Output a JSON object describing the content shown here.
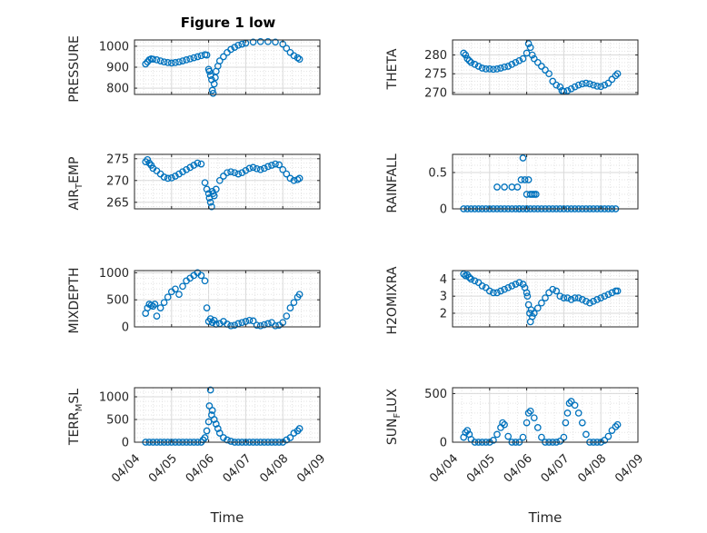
{
  "figure": {
    "title": "Figure 1 low",
    "marker_color": "#0072BD"
  },
  "chart_data": [
    {
      "type": "scatter",
      "panel": "pressure",
      "ylabel": "PRESSURE",
      "ylim": [
        770,
        1030
      ],
      "yticks": [
        800,
        900,
        1000
      ],
      "xlim": [
        "04/04",
        "04/09"
      ],
      "xtick_labels": [],
      "grid": true,
      "series": [
        {
          "x": [
            4.3,
            4.35,
            4.4,
            4.45,
            4.5,
            4.6,
            4.7,
            4.8,
            4.9,
            5.0,
            5.1,
            5.2,
            5.3,
            5.4,
            5.5,
            5.6,
            5.7,
            5.8,
            5.9,
            5.95,
            6.0,
            6.02,
            6.05,
            6.08,
            6.1,
            6.12,
            6.15,
            6.18,
            6.2,
            6.25,
            6.3,
            6.4,
            6.5,
            6.6,
            6.7,
            6.8,
            6.9,
            7.0,
            7.2,
            7.4,
            7.6,
            7.8,
            8.0,
            8.1,
            8.2,
            8.3,
            8.4,
            8.45
          ],
          "y": [
            915,
            925,
            935,
            940,
            938,
            935,
            930,
            925,
            922,
            920,
            922,
            925,
            930,
            935,
            940,
            945,
            950,
            955,
            960,
            958,
            890,
            880,
            860,
            840,
            790,
            775,
            820,
            850,
            880,
            905,
            930,
            950,
            970,
            985,
            995,
            1005,
            1010,
            1015,
            1020,
            1022,
            1022,
            1020,
            1010,
            990,
            970,
            955,
            945,
            938
          ]
        }
      ]
    },
    {
      "type": "scatter",
      "panel": "theta",
      "ylabel": "THETA",
      "ylim": [
        269.5,
        284
      ],
      "yticks": [
        270,
        275,
        280
      ],
      "xlim": [
        "04/04",
        "04/09"
      ],
      "xtick_labels": [],
      "grid": true,
      "series": [
        {
          "x": [
            4.3,
            4.35,
            4.4,
            4.45,
            4.5,
            4.6,
            4.7,
            4.8,
            4.9,
            5.0,
            5.1,
            5.2,
            5.3,
            5.4,
            5.5,
            5.6,
            5.7,
            5.8,
            5.9,
            6.0,
            6.05,
            6.1,
            6.15,
            6.2,
            6.3,
            6.4,
            6.5,
            6.6,
            6.7,
            6.8,
            6.9,
            6.95,
            7.0,
            7.1,
            7.2,
            7.3,
            7.4,
            7.5,
            7.6,
            7.7,
            7.8,
            7.9,
            8.0,
            8.1,
            8.2,
            8.3,
            8.4,
            8.45
          ],
          "y": [
            280.5,
            280,
            279,
            278.5,
            278,
            277.5,
            277,
            276.5,
            276.3,
            276.3,
            276.2,
            276.3,
            276.5,
            276.8,
            277,
            277.5,
            278,
            278.5,
            279,
            280.5,
            283,
            282,
            280,
            279,
            278,
            277,
            276,
            275,
            273,
            272,
            271.5,
            270.5,
            270.3,
            270.5,
            271,
            271.5,
            272,
            272.3,
            272.5,
            272.3,
            272,
            271.7,
            271.6,
            272,
            272.5,
            273.5,
            274.5,
            275
          ]
        }
      ]
    },
    {
      "type": "scatter",
      "panel": "air_temp",
      "ylabel": "AIR_TEMP",
      "ylim": [
        263.5,
        276
      ],
      "yticks": [
        265,
        270,
        275
      ],
      "xlim": [
        "04/04",
        "04/09"
      ],
      "xtick_labels": [],
      "grid": true,
      "series": [
        {
          "x": [
            4.3,
            4.35,
            4.4,
            4.45,
            4.5,
            4.6,
            4.7,
            4.8,
            4.9,
            5.0,
            5.1,
            5.2,
            5.3,
            5.4,
            5.5,
            5.6,
            5.7,
            5.8,
            5.9,
            5.95,
            6.0,
            6.02,
            6.05,
            6.08,
            6.1,
            6.12,
            6.15,
            6.2,
            6.3,
            6.4,
            6.5,
            6.6,
            6.7,
            6.8,
            6.9,
            7.0,
            7.1,
            7.2,
            7.3,
            7.4,
            7.5,
            7.6,
            7.7,
            7.8,
            7.9,
            8.0,
            8.1,
            8.2,
            8.3,
            8.4,
            8.45
          ],
          "y": [
            274.3,
            274.8,
            274,
            273.5,
            272.8,
            272.2,
            271.5,
            270.8,
            270.5,
            270.6,
            271,
            271.5,
            272,
            272.5,
            273,
            273.5,
            274,
            273.8,
            269.5,
            268,
            267,
            266,
            265,
            264,
            267.5,
            267,
            266.5,
            268,
            270,
            271,
            271.8,
            272,
            271.8,
            271.5,
            271.8,
            272.3,
            272.8,
            273,
            272.7,
            272.5,
            272.8,
            273.2,
            273.5,
            273.8,
            273.6,
            272.5,
            271.5,
            270.5,
            270,
            270.2,
            270.5
          ]
        }
      ]
    },
    {
      "type": "scatter",
      "panel": "rainfall",
      "ylabel": "RAINFALL",
      "ylim": [
        0,
        0.75
      ],
      "yticks": [
        0,
        0.5
      ],
      "xlim": [
        "04/04",
        "04/09"
      ],
      "xtick_labels": [],
      "grid": true,
      "series": [
        {
          "x": [
            4.3,
            4.4,
            4.5,
            4.6,
            4.7,
            4.8,
            4.9,
            5.0,
            5.1,
            5.2,
            5.3,
            5.4,
            5.5,
            5.6,
            5.7,
            5.8,
            5.9,
            6.0,
            6.1,
            6.2,
            6.3,
            6.4,
            6.5,
            6.6,
            6.7,
            6.8,
            6.9,
            7.0,
            7.1,
            7.2,
            7.3,
            7.4,
            7.5,
            7.6,
            7.7,
            7.8,
            7.9,
            8.0,
            8.1,
            8.2,
            8.3,
            8.4,
            5.2,
            5.4,
            5.6,
            5.75,
            5.85,
            5.9,
            5.95,
            6.0,
            6.05,
            6.1,
            6.15,
            6.2,
            6.25,
            5.8,
            6.0
          ],
          "y": [
            0,
            0,
            0,
            0,
            0,
            0,
            0,
            0,
            0,
            0,
            0,
            0,
            0,
            0,
            0,
            0,
            0,
            0,
            0,
            0,
            0,
            0,
            0,
            0,
            0,
            0,
            0,
            0,
            0,
            0,
            0,
            0,
            0,
            0,
            0,
            0,
            0,
            0,
            0,
            0,
            0,
            0,
            0.3,
            0.3,
            0.3,
            0.3,
            0.4,
            0.7,
            0.4,
            0.2,
            0.4,
            0.2,
            0.2,
            0.2,
            0.2,
            0,
            0
          ]
        }
      ]
    },
    {
      "type": "scatter",
      "panel": "mixdepth",
      "ylabel": "MIXDEPTH",
      "ylim": [
        0,
        1040
      ],
      "yticks": [
        0,
        500,
        1000
      ],
      "xlim": [
        "04/04",
        "04/09"
      ],
      "xtick_labels": [],
      "grid": true,
      "series": [
        {
          "x": [
            4.3,
            4.35,
            4.4,
            4.45,
            4.5,
            4.55,
            4.6,
            4.7,
            4.8,
            4.9,
            5.0,
            5.1,
            5.2,
            5.3,
            5.4,
            5.5,
            5.6,
            5.7,
            5.8,
            5.9,
            5.95,
            6.0,
            6.05,
            6.1,
            6.15,
            6.2,
            6.3,
            6.4,
            6.5,
            6.6,
            6.7,
            6.8,
            6.9,
            7.0,
            7.1,
            7.2,
            7.3,
            7.4,
            7.5,
            7.6,
            7.7,
            7.8,
            7.9,
            8.0,
            8.1,
            8.2,
            8.3,
            8.4,
            8.45
          ],
          "y": [
            250,
            350,
            420,
            400,
            380,
            420,
            200,
            350,
            450,
            550,
            650,
            700,
            600,
            750,
            850,
            900,
            950,
            1000,
            950,
            850,
            350,
            100,
            150,
            80,
            120,
            50,
            60,
            100,
            50,
            20,
            30,
            60,
            80,
            100,
            120,
            110,
            30,
            20,
            40,
            60,
            80,
            20,
            30,
            80,
            200,
            350,
            450,
            550,
            600
          ]
        }
      ]
    },
    {
      "type": "scatter",
      "panel": "h2omixra",
      "ylabel": "H2OMIXRA",
      "ylim": [
        1.2,
        4.5
      ],
      "yticks": [
        2,
        3,
        4
      ],
      "xlim": [
        "04/04",
        "04/09"
      ],
      "xtick_labels": [],
      "grid": true,
      "series": [
        {
          "x": [
            4.3,
            4.35,
            4.4,
            4.45,
            4.5,
            4.6,
            4.7,
            4.8,
            4.9,
            5.0,
            5.1,
            5.2,
            5.3,
            5.4,
            5.5,
            5.6,
            5.7,
            5.8,
            5.9,
            5.95,
            6.0,
            6.02,
            6.05,
            6.08,
            6.1,
            6.12,
            6.15,
            6.2,
            6.3,
            6.4,
            6.5,
            6.6,
            6.7,
            6.8,
            6.9,
            7.0,
            7.1,
            7.2,
            7.3,
            7.4,
            7.5,
            7.6,
            7.7,
            7.8,
            7.9,
            8.0,
            8.1,
            8.2,
            8.3,
            8.4,
            8.45
          ],
          "y": [
            4.3,
            4.2,
            4.25,
            4.1,
            4.0,
            3.9,
            3.8,
            3.6,
            3.5,
            3.3,
            3.2,
            3.2,
            3.3,
            3.4,
            3.5,
            3.6,
            3.7,
            3.8,
            3.7,
            3.5,
            3.2,
            3.0,
            2.5,
            2.0,
            1.5,
            2.2,
            1.8,
            2.0,
            2.3,
            2.6,
            2.9,
            3.2,
            3.4,
            3.3,
            3.0,
            2.9,
            2.9,
            2.8,
            2.9,
            2.9,
            2.8,
            2.7,
            2.6,
            2.7,
            2.8,
            2.9,
            3.0,
            3.1,
            3.2,
            3.3,
            3.3
          ]
        }
      ]
    },
    {
      "type": "scatter",
      "panel": "terr_msl",
      "ylabel": "TERR_MSL",
      "ylim": [
        0,
        1200
      ],
      "yticks": [
        0,
        500,
        1000
      ],
      "xlim": [
        "04/04",
        "04/09"
      ],
      "xtick_labels": [
        "04/04",
        "04/05",
        "04/06",
        "04/07",
        "04/08",
        "04/09"
      ],
      "xlabel": "Time",
      "grid": true,
      "series": [
        {
          "x": [
            4.3,
            4.4,
            4.5,
            4.6,
            4.7,
            4.8,
            4.9,
            5.0,
            5.1,
            5.2,
            5.3,
            5.4,
            5.5,
            5.6,
            5.7,
            5.8,
            5.85,
            5.9,
            5.95,
            6.0,
            6.02,
            6.05,
            6.08,
            6.1,
            6.15,
            6.2,
            6.25,
            6.3,
            6.4,
            6.5,
            6.6,
            6.7,
            6.8,
            6.9,
            7.0,
            7.1,
            7.2,
            7.3,
            7.4,
            7.5,
            7.6,
            7.7,
            7.8,
            7.9,
            8.0,
            8.1,
            8.2,
            8.3,
            8.4,
            8.45
          ],
          "y": [
            0,
            0,
            0,
            0,
            0,
            0,
            0,
            0,
            0,
            0,
            0,
            0,
            0,
            0,
            0,
            0,
            50,
            100,
            250,
            450,
            800,
            1150,
            600,
            700,
            500,
            400,
            300,
            200,
            100,
            50,
            20,
            0,
            0,
            0,
            0,
            0,
            0,
            0,
            0,
            0,
            0,
            0,
            0,
            0,
            0,
            50,
            100,
            200,
            250,
            300
          ]
        }
      ]
    },
    {
      "type": "scatter",
      "panel": "sun_flux",
      "ylabel": "SUN_FLUX",
      "ylim": [
        0,
        560
      ],
      "yticks": [
        0,
        500
      ],
      "xlim": [
        "04/04",
        "04/09"
      ],
      "xtick_labels": [
        "04/04",
        "04/05",
        "04/06",
        "04/07",
        "04/08",
        "04/09"
      ],
      "xlabel": "Time",
      "grid": true,
      "series": [
        {
          "x": [
            4.3,
            4.35,
            4.4,
            4.45,
            4.5,
            4.6,
            4.7,
            4.8,
            4.9,
            5.0,
            5.1,
            5.2,
            5.3,
            5.35,
            5.4,
            5.5,
            5.6,
            5.7,
            5.8,
            5.9,
            6.0,
            6.05,
            6.1,
            6.2,
            6.3,
            6.4,
            6.5,
            6.6,
            6.7,
            6.8,
            6.9,
            7.0,
            7.05,
            7.1,
            7.15,
            7.2,
            7.3,
            7.4,
            7.5,
            7.6,
            7.7,
            7.8,
            7.9,
            8.0,
            8.1,
            8.2,
            8.3,
            8.4,
            8.45
          ],
          "y": [
            50,
            100,
            120,
            80,
            30,
            0,
            0,
            0,
            0,
            0,
            20,
            80,
            150,
            200,
            180,
            60,
            0,
            0,
            0,
            50,
            200,
            300,
            320,
            250,
            150,
            50,
            0,
            0,
            0,
            0,
            10,
            50,
            200,
            300,
            400,
            420,
            380,
            300,
            200,
            80,
            0,
            0,
            0,
            0,
            20,
            60,
            120,
            160,
            180
          ]
        }
      ]
    }
  ]
}
